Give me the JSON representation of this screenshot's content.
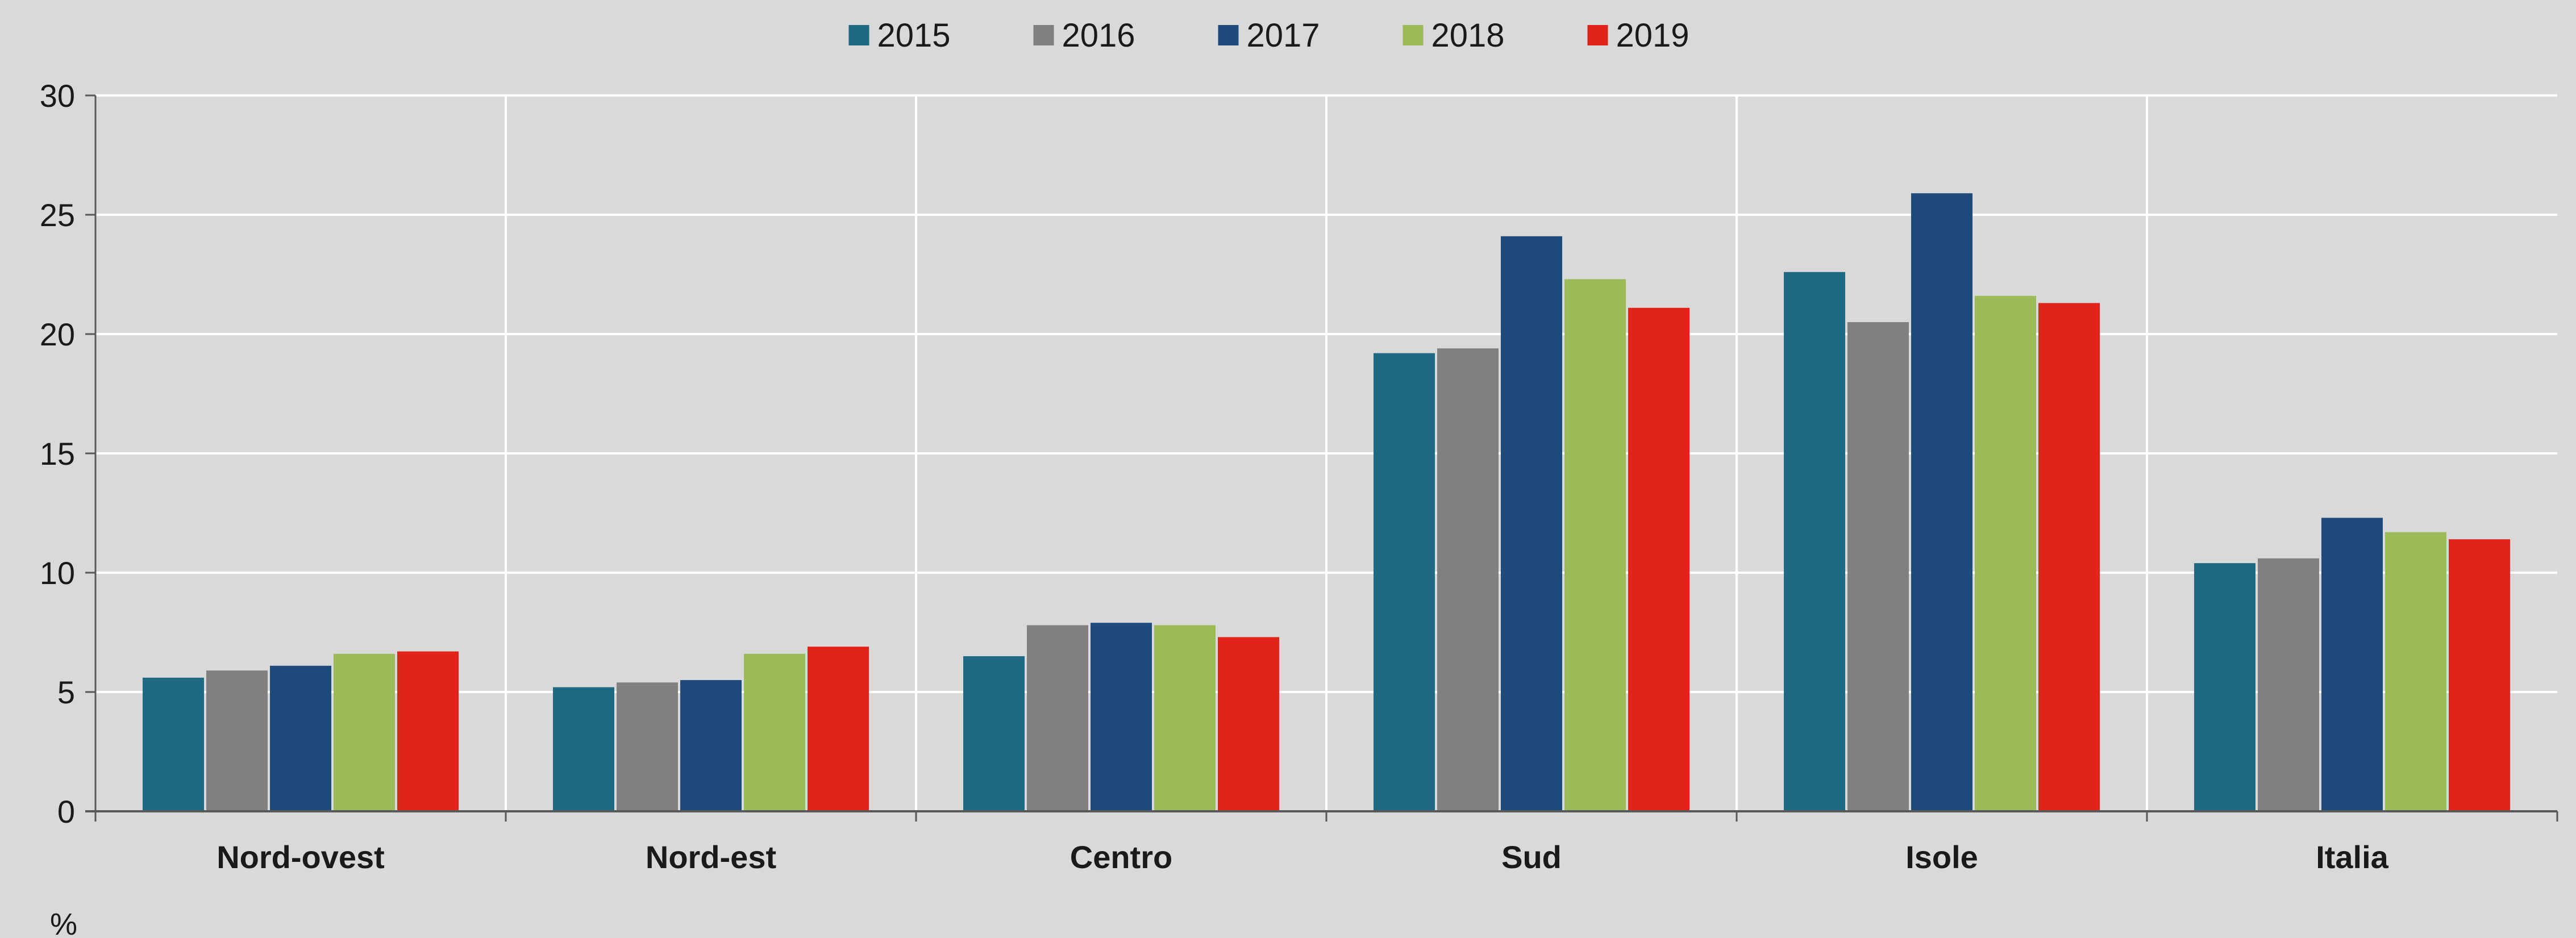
{
  "chart_data": {
    "type": "bar",
    "title": "",
    "xlabel": "",
    "ylabel": "%",
    "categories": [
      "Nord-ovest",
      "Nord-est",
      "Centro",
      "Sud",
      "Isole",
      "Italia"
    ],
    "series": [
      {
        "name": "2015",
        "color": "#1e6a85",
        "values": [
          5.6,
          5.2,
          6.5,
          19.2,
          22.6,
          10.4
        ]
      },
      {
        "name": "2016",
        "color": "#808080",
        "values": [
          5.9,
          5.4,
          7.8,
          19.4,
          20.5,
          10.6
        ]
      },
      {
        "name": "2017",
        "color": "#1f4a7c",
        "values": [
          6.1,
          5.5,
          7.9,
          24.1,
          25.9,
          12.3
        ]
      },
      {
        "name": "2018",
        "color": "#9bbb59",
        "values": [
          6.6,
          6.6,
          7.8,
          22.3,
          21.6,
          11.7
        ]
      },
      {
        "name": "2019",
        "color": "#e2231a",
        "values": [
          6.7,
          6.9,
          7.3,
          21.1,
          21.3,
          11.4
        ]
      }
    ],
    "ylim": [
      0,
      30
    ],
    "yticks": [
      0,
      5,
      10,
      15,
      20,
      25,
      30
    ],
    "grid": true,
    "legend_position": "top-center",
    "background_color": "#d9d9d9",
    "gridline_color": "#ffffff"
  }
}
